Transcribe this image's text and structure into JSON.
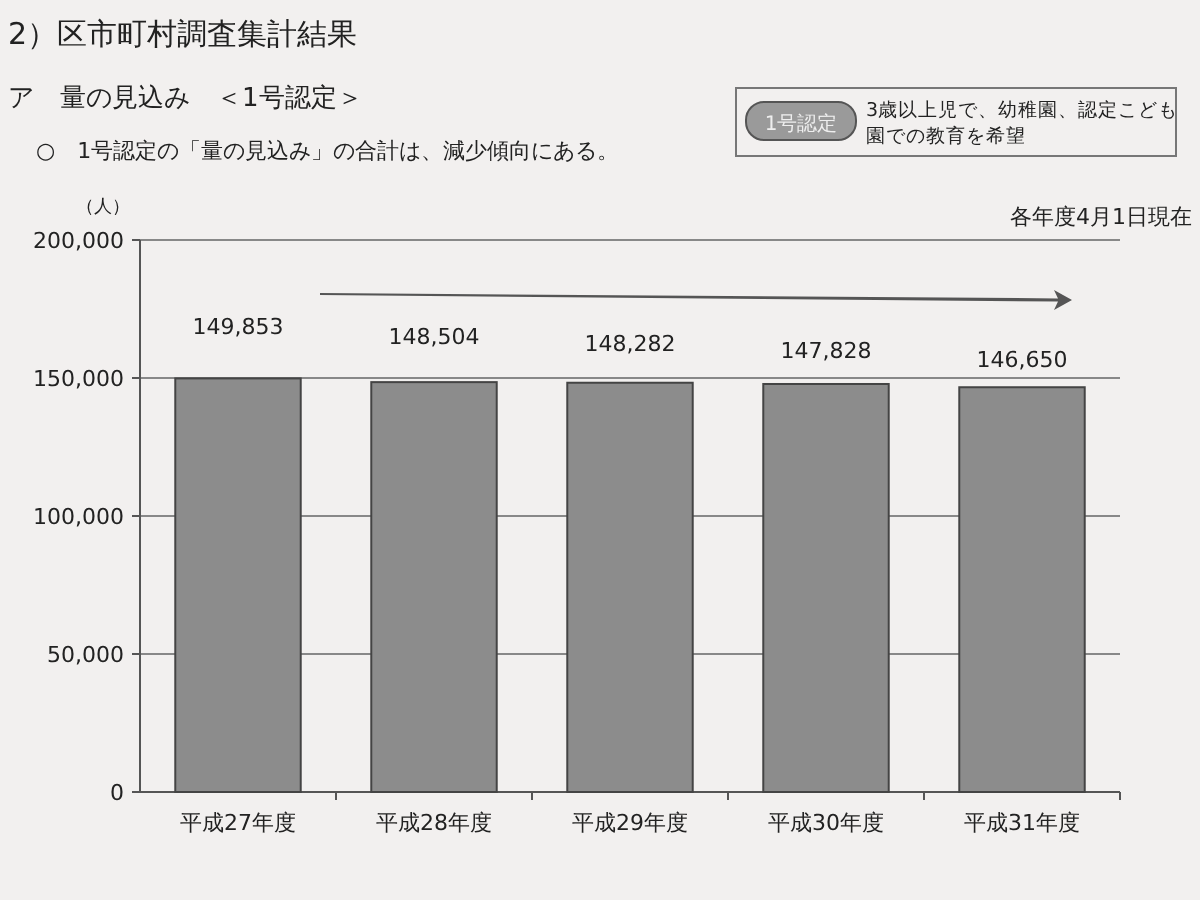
{
  "chart_data": {
    "type": "bar",
    "title": "2）区市町村調査集計結果",
    "subtitle": "ア　量の見込み　＜1号認定＞",
    "ylabel": "（人）",
    "categories": [
      "平成27年度",
      "平成28年度",
      "平成29年度",
      "平成30年度",
      "平成31年度"
    ],
    "values": [
      149853,
      148504,
      148282,
      147828,
      146650
    ],
    "color": "#8c8c8c",
    "ylim": [
      0,
      200000
    ],
    "yticks": [
      {
        "value": 0,
        "label": "0"
      },
      {
        "value": 50000,
        "label": "50,000"
      },
      {
        "value": 100000,
        "label": "100,000"
      },
      {
        "value": 150000,
        "label": "150,000"
      },
      {
        "value": 200000,
        "label": "200,000"
      }
    ],
    "grid": "y",
    "value_labels": [
      "149,853",
      "148,504",
      "148,282",
      "147,828",
      "146,650"
    ],
    "annotations": [
      "○　1号認定の「量の見込み」の合計は、減少傾向にある。",
      "1号認定",
      "3歳以上児で、幼稚園、認定こども園での教育を希望",
      "各年度4月1日現在"
    ]
  }
}
